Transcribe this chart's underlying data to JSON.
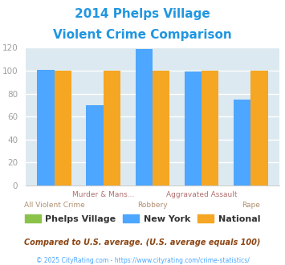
{
  "title_line1": "2014 Phelps Village",
  "title_line2": "Violent Crime Comparison",
  "title_color": "#2196e0",
  "categories_top": [
    "",
    "Murder & Mans...",
    "",
    "Aggravated Assault",
    ""
  ],
  "categories_bot": [
    "All Violent Crime",
    "",
    "Robbery",
    "",
    "Rape"
  ],
  "phelps_village": [
    0,
    0,
    0,
    0,
    0
  ],
  "new_york": [
    101,
    70,
    119,
    99,
    75
  ],
  "national": [
    100,
    100,
    100,
    100,
    100
  ],
  "phelps_color": "#8bc34a",
  "ny_color": "#4da6ff",
  "national_color": "#f5a623",
  "bg_color": "#dce9f0",
  "ylim": [
    0,
    120
  ],
  "yticks": [
    0,
    20,
    40,
    60,
    80,
    100,
    120
  ],
  "ylabel_color": "#a0a0a0",
  "top_xlabel_color": "#b07070",
  "bot_xlabel_color": "#b09070",
  "grid_color": "#ffffff",
  "legend_labels": [
    "Phelps Village",
    "New York",
    "National"
  ],
  "legend_text_color": "#333333",
  "footnote1": "Compared to U.S. average. (U.S. average equals 100)",
  "footnote2": "© 2025 CityRating.com - https://www.cityrating.com/crime-statistics/",
  "footnote1_color": "#8b4513",
  "footnote2_color": "#4da6ff",
  "bar_width": 0.35
}
